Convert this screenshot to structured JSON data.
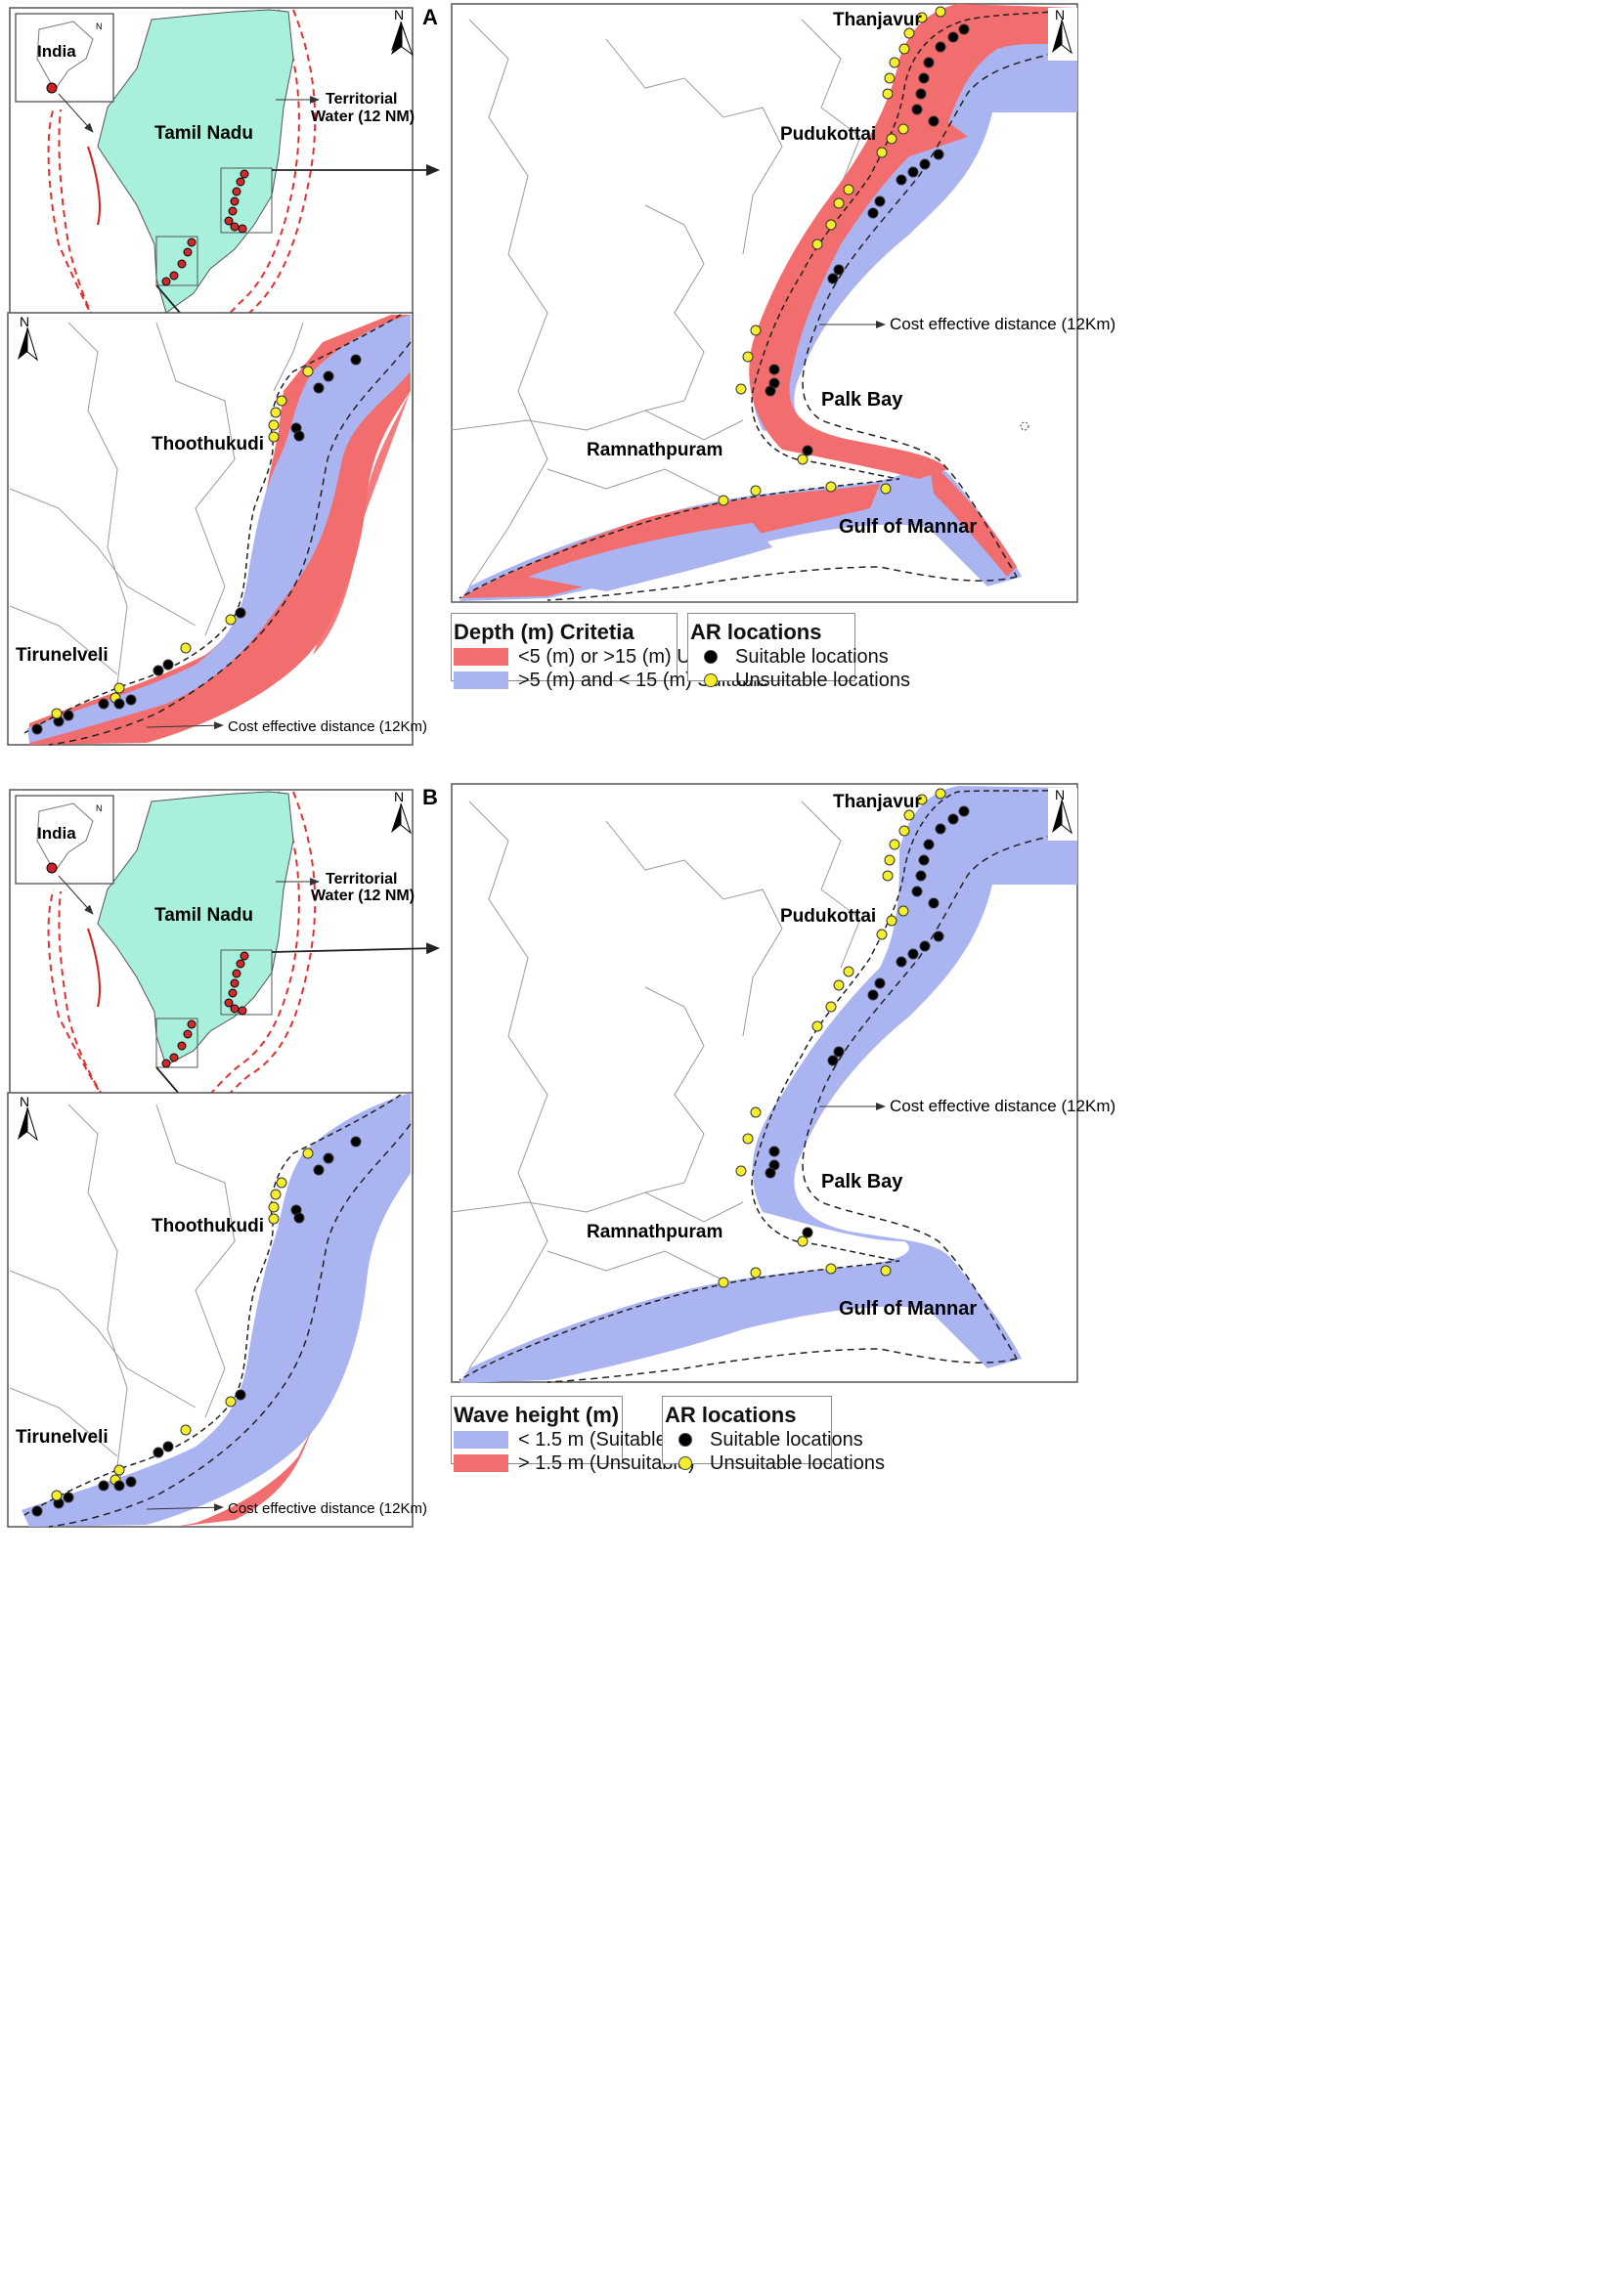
{
  "colors": {
    "unsuitable_fill": "#f26d6d",
    "suitable_fill": "#aab4f0",
    "state_fill": "#a8f0dc",
    "territorial_line": "#e03030",
    "district_line": "#9a9a9a",
    "suitable_dot": "#000000",
    "unsuitable_dot": "#f5ee2a",
    "overview_dot": "#d12a2a"
  },
  "panels": [
    {
      "id": "A",
      "panel_letter": "A",
      "overview": {
        "inset_label": "India",
        "state_label": "Tamil Nadu",
        "territorial_label_1": "Territorial",
        "territorial_label_2": "Water  (12 NM)",
        "north": "N"
      },
      "south_map": {
        "north": "N",
        "labels": {
          "thoothukudi": "Thoothukudi",
          "tirunelveli": "Tirunelveli"
        },
        "distance_label": "Cost effective distance (12Km)"
      },
      "main_map": {
        "north": "N",
        "labels": {
          "thanjavur": "Thanjavur",
          "pudukottai": "Pudukottai",
          "ramnathpuram": "Ramnathpuram",
          "palk_bay": "Palk Bay",
          "gulf_of_mannar": "Gulf of Mannar"
        },
        "distance_label": "Cost effective distance (12Km)"
      },
      "legend_criteria": {
        "title": "Depth (m) Critetia",
        "items": [
          {
            "label": "<5 (m) or >15 (m) Unsuitable",
            "color": "#f26d6d"
          },
          {
            "label": ">5 (m) and < 15 (m) Suitable",
            "color": "#aab4f0"
          }
        ]
      },
      "legend_ar": {
        "title": "AR locations",
        "items": [
          {
            "label": "Suitable locations",
            "color": "#000000"
          },
          {
            "label": "Unsuitable locations",
            "color": "#f5ee2a"
          }
        ]
      }
    },
    {
      "id": "B",
      "panel_letter": "B",
      "overview": {
        "inset_label": "India",
        "state_label": "Tamil Nadu",
        "territorial_label_1": "Territorial",
        "territorial_label_2": "Water  (12 NM)",
        "north": "N"
      },
      "south_map": {
        "north": "N",
        "labels": {
          "thoothukudi": "Thoothukudi",
          "tirunelveli": "Tirunelveli"
        },
        "distance_label": "Cost effective distance (12Km)"
      },
      "main_map": {
        "north": "N",
        "labels": {
          "thanjavur": "Thanjavur",
          "pudukottai": "Pudukottai",
          "ramnathpuram": "Ramnathpuram",
          "palk_bay": "Palk Bay",
          "gulf_of_mannar": "Gulf of Mannar"
        },
        "distance_label": "Cost effective distance (12Km)"
      },
      "legend_criteria": {
        "title": "Wave height (m)",
        "items": [
          {
            "label": "< 1.5 m (Suitable)",
            "color": "#aab4f0"
          },
          {
            "label": "> 1.5 m (Unsuitable)",
            "color": "#f26d6d"
          }
        ]
      },
      "legend_ar": {
        "title": "AR locations",
        "items": [
          {
            "label": "Suitable locations",
            "color": "#000000"
          },
          {
            "label": "Unsuitable locations",
            "color": "#f5ee2a"
          }
        ]
      }
    }
  ]
}
